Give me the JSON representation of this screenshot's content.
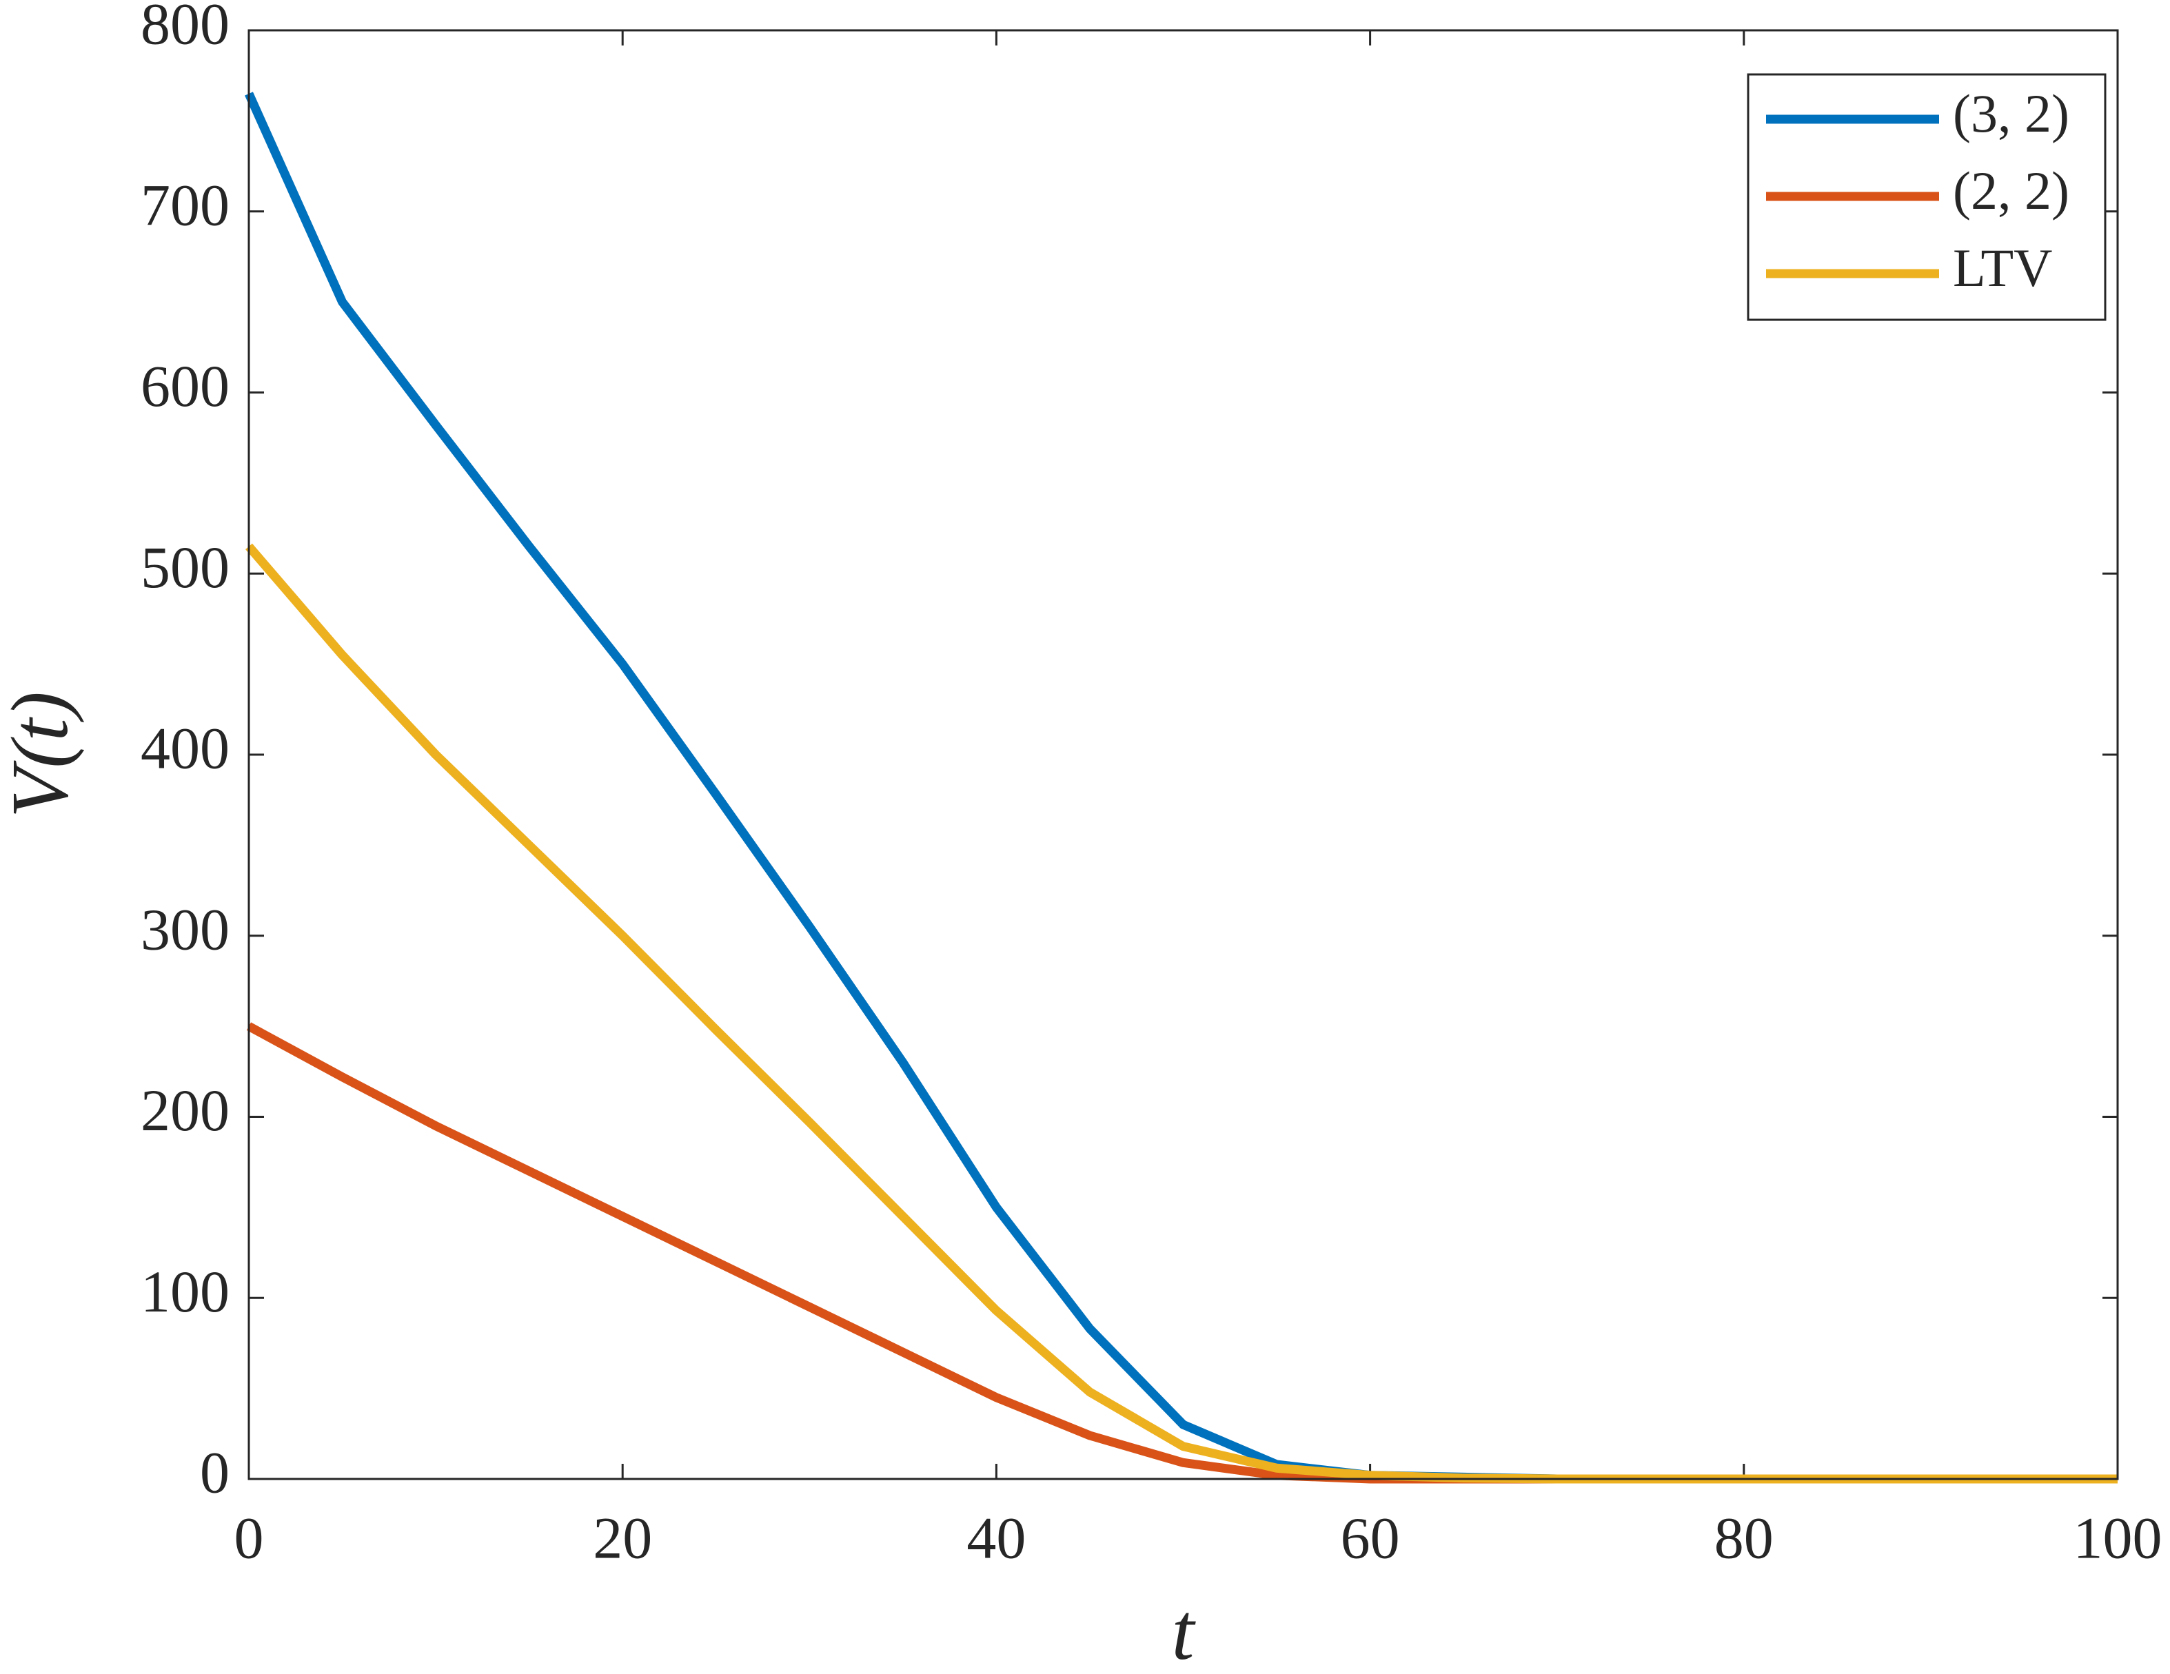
{
  "chart_data": {
    "type": "line",
    "x_label": "t",
    "y_label": "V(t)",
    "x": [
      0,
      5,
      10,
      15,
      20,
      25,
      30,
      35,
      40,
      45,
      50,
      55,
      60,
      65,
      70,
      75,
      80,
      85,
      90,
      95,
      100
    ],
    "series": [
      {
        "name": "(3, 2)",
        "color": "#0072bd",
        "values": [
          765,
          650,
          582,
          515,
          450,
          378,
          305,
          230,
          150,
          83,
          30,
          8,
          2,
          1,
          0,
          0,
          0,
          0,
          0,
          0,
          0
        ]
      },
      {
        "name": "(2, 2)",
        "color": "#d95319",
        "values": [
          250,
          222,
          195,
          170,
          145,
          120,
          95,
          70,
          45,
          24,
          9,
          2,
          0,
          0,
          0,
          0,
          0,
          0,
          0,
          0,
          0
        ]
      },
      {
        "name": "LTV",
        "color": "#edb120",
        "values": [
          515,
          455,
          400,
          350,
          300,
          248,
          197,
          145,
          93,
          48,
          18,
          6,
          2,
          0.5,
          0,
          0,
          0,
          0,
          0,
          0,
          0
        ]
      }
    ],
    "xlim": [
      0,
      100
    ],
    "xticks": [
      0,
      20,
      40,
      60,
      80,
      100
    ],
    "ylim": [
      0,
      800
    ],
    "yticks": [
      0,
      100,
      200,
      300,
      400,
      500,
      600,
      700,
      800
    ],
    "grid": false,
    "legend": "upper right"
  }
}
